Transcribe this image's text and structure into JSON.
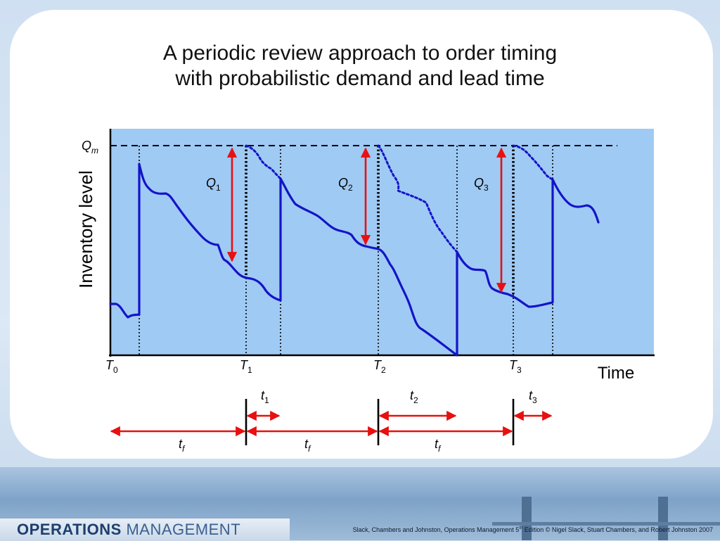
{
  "title": {
    "line1": "A periodic review approach to order timing",
    "line2": "with probabilistic demand and lead time"
  },
  "axes": {
    "y_label": "Inventory level",
    "x_label": "Time",
    "max_level": {
      "base": "Q",
      "sub": "m"
    }
  },
  "review_points": [
    {
      "base": "T",
      "sub": "0"
    },
    {
      "base": "T",
      "sub": "1"
    },
    {
      "base": "T",
      "sub": "2"
    },
    {
      "base": "T",
      "sub": "3"
    }
  ],
  "order_quantities": [
    {
      "base": "Q",
      "sub": "1"
    },
    {
      "base": "Q",
      "sub": "2"
    },
    {
      "base": "Q",
      "sub": "3"
    }
  ],
  "lead_times": [
    {
      "base": "t",
      "sub": "1"
    },
    {
      "base": "t",
      "sub": "2"
    },
    {
      "base": "t",
      "sub": "3"
    }
  ],
  "review_intervals": [
    {
      "base": "t",
      "sub": "f"
    },
    {
      "base": "t",
      "sub": "f"
    },
    {
      "base": "t",
      "sub": "f"
    }
  ],
  "colors": {
    "plot_background": "#9fcaf4",
    "inventory_line": "#1414c8",
    "arrow": "#e81010",
    "reference_line": "#000000"
  },
  "footer": {
    "brand_strong": "OPERATIONS",
    "brand_light": "MANAGEMENT",
    "credit_before": "Slack, Chambers and Johnston, Operations Management 5",
    "credit_sup": "th",
    "credit_after": " Edition © Nigel Slack, Stuart Chambers, and Robert Johnston 2007"
  }
}
